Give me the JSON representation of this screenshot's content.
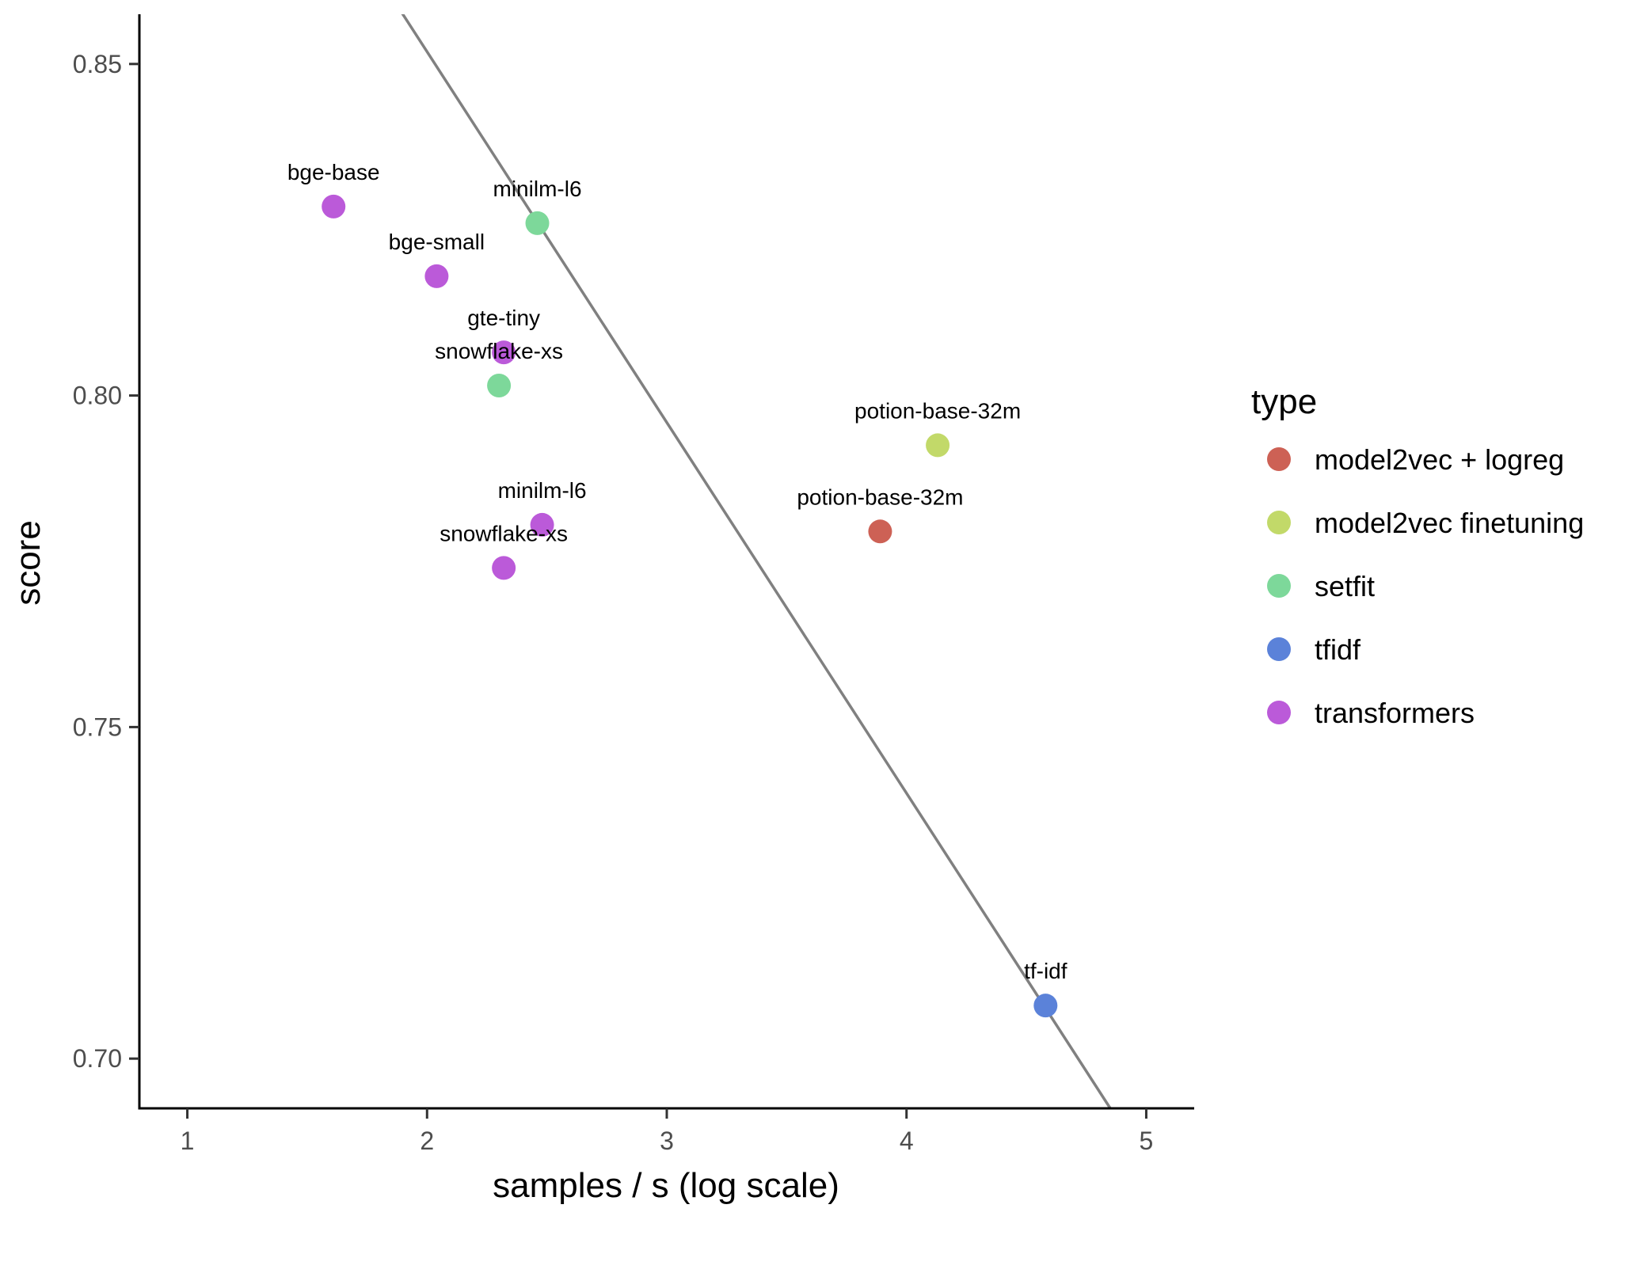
{
  "chart_data": {
    "type": "scatter",
    "title": "",
    "xlabel": "samples / s (log scale)",
    "ylabel": "score",
    "xlim": [
      0.8,
      5.2
    ],
    "ylim": [
      0.6925,
      0.8575
    ],
    "x_ticks": [
      1,
      2,
      3,
      4,
      5
    ],
    "y_ticks": [
      0.7,
      0.75,
      0.8,
      0.85
    ],
    "x_tick_labels": [
      "1",
      "2",
      "3",
      "4",
      "5"
    ],
    "y_tick_labels": [
      "0.70",
      "0.75",
      "0.80",
      "0.85"
    ],
    "grid": false,
    "legend": {
      "title": "type",
      "placement": "right",
      "entries": [
        {
          "label": "model2vec + logreg",
          "color": "#CD6155"
        },
        {
          "label": "model2vec finetuning",
          "color": "#C2D969"
        },
        {
          "label": "setfit",
          "color": "#7DD89A"
        },
        {
          "label": "tfidf",
          "color": "#5B82D9"
        },
        {
          "label": "transformers",
          "color": "#BB5AD9"
        }
      ]
    },
    "trend_line": {
      "x1": 1.89,
      "y1": 0.858,
      "x2": 4.85,
      "y2": 0.6925,
      "color": "#808080"
    },
    "points": [
      {
        "label": "bge-base",
        "x": 1.61,
        "y": 0.8285,
        "type": "transformers"
      },
      {
        "label": "bge-small",
        "x": 2.04,
        "y": 0.818,
        "type": "transformers"
      },
      {
        "label": "gte-tiny",
        "x": 2.32,
        "y": 0.8065,
        "type": "transformers"
      },
      {
        "label": "minilm-l6",
        "x": 2.48,
        "y": 0.7805,
        "type": "transformers"
      },
      {
        "label": "snowflake-xs",
        "x": 2.32,
        "y": 0.774,
        "type": "transformers"
      },
      {
        "label": "minilm-l6",
        "x": 2.46,
        "y": 0.826,
        "type": "setfit"
      },
      {
        "label": "snowflake-xs",
        "x": 2.3,
        "y": 0.8015,
        "type": "setfit"
      },
      {
        "label": "potion-base-32m",
        "x": 4.13,
        "y": 0.7925,
        "type": "model2vec finetuning"
      },
      {
        "label": "potion-base-32m",
        "x": 3.89,
        "y": 0.7795,
        "type": "model2vec + logreg"
      },
      {
        "label": "tf-idf",
        "x": 4.58,
        "y": 0.708,
        "type": "tfidf"
      }
    ]
  }
}
